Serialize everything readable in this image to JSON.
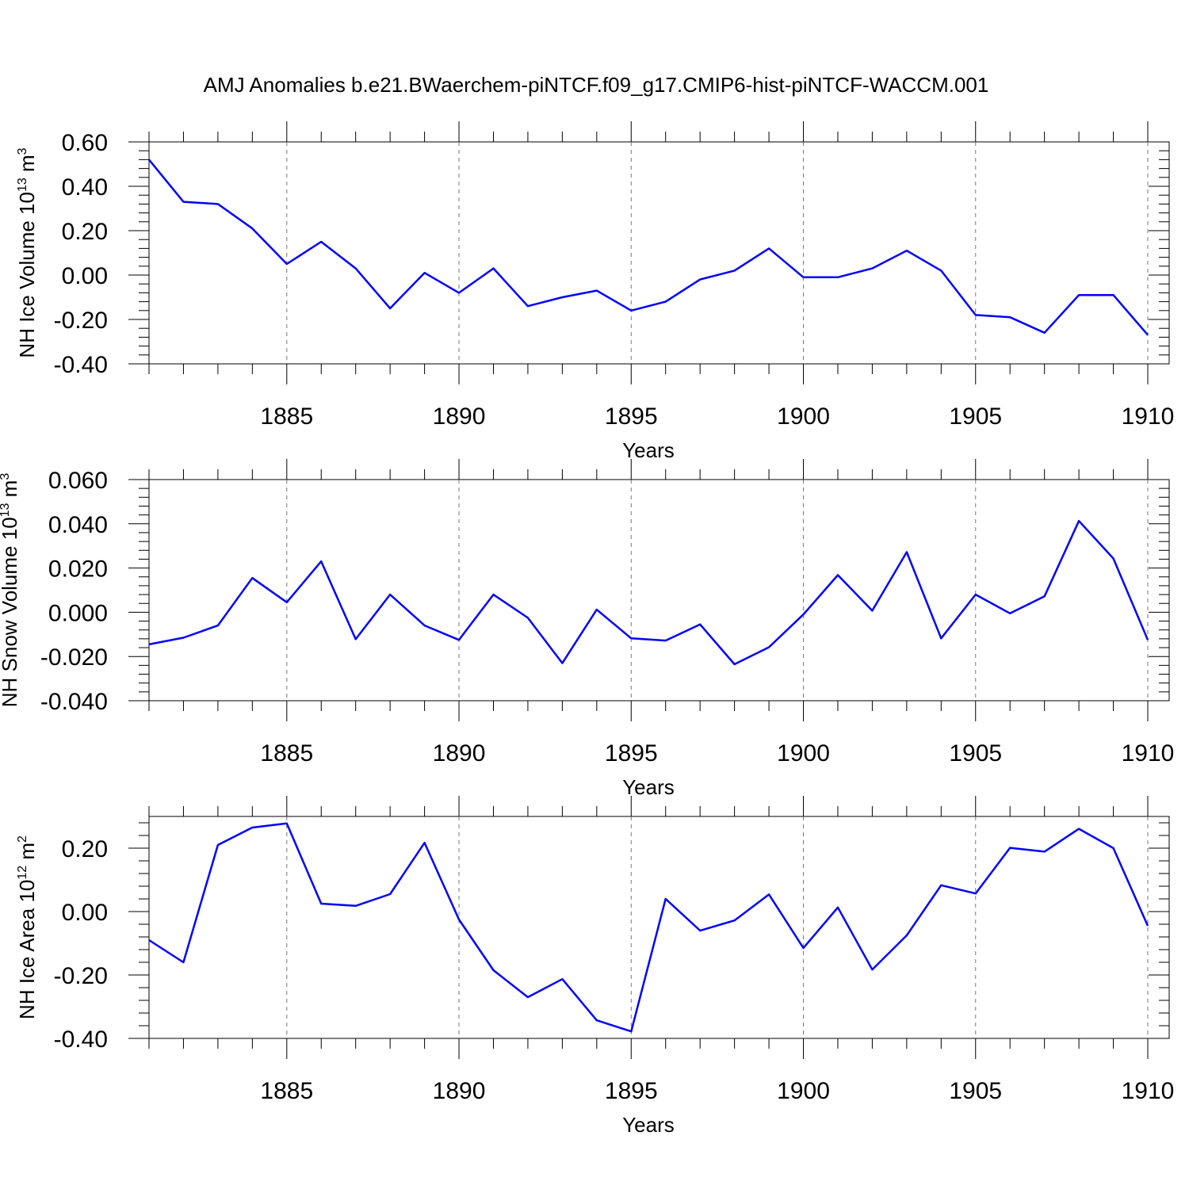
{
  "title": "AMJ Anomalies b.e21.BWaerchem-piNTCF.f09_g17.CMIP6-hist-piNTCF-WACCM.001",
  "colors": {
    "line": "#0000ff",
    "grid": "#777777",
    "frame": "#000000"
  },
  "chart_data": [
    {
      "type": "line",
      "ylabel": "NH Ice Volume 10",
      "ylabel_sup": "13",
      "ylabel_unit": " m",
      "ylabel_unit_sup": "3",
      "xlabel": "Years",
      "xlim": [
        1881,
        1910
      ],
      "ylim": [
        -0.4,
        0.6
      ],
      "yticks": [
        -0.4,
        -0.2,
        0.0,
        0.2,
        0.4,
        0.6
      ],
      "ytick_labels": [
        "-0.40",
        "-0.20",
        "0.00",
        "0.20",
        "0.40",
        "0.60"
      ],
      "xticks": [
        1885,
        1890,
        1895,
        1900,
        1905,
        1910
      ],
      "xtick_labels": [
        "1885",
        "1890",
        "1895",
        "1900",
        "1905",
        "1910"
      ],
      "grid": "vertical dashed at major x ticks",
      "x": [
        1881,
        1882,
        1883,
        1884,
        1885,
        1886,
        1887,
        1888,
        1889,
        1890,
        1891,
        1892,
        1893,
        1894,
        1895,
        1896,
        1897,
        1898,
        1899,
        1900,
        1901,
        1902,
        1903,
        1904,
        1905,
        1906,
        1907,
        1908,
        1909,
        1910
      ],
      "values": [
        0.52,
        0.33,
        0.32,
        0.21,
        0.05,
        0.15,
        0.03,
        -0.15,
        0.01,
        -0.08,
        0.03,
        -0.14,
        -0.1,
        -0.07,
        -0.16,
        -0.12,
        -0.02,
        0.02,
        0.12,
        -0.01,
        -0.01,
        0.03,
        0.11,
        0.02,
        -0.18,
        -0.19,
        -0.26,
        -0.09,
        -0.09,
        -0.27
      ]
    },
    {
      "type": "line",
      "ylabel": "NH Snow Volume 10",
      "ylabel_sup": "13",
      "ylabel_unit": " m",
      "ylabel_unit_sup": "3",
      "xlabel": "Years",
      "xlim": [
        1881,
        1910
      ],
      "ylim": [
        -0.04,
        0.06
      ],
      "yticks": [
        -0.04,
        -0.02,
        0.0,
        0.02,
        0.04,
        0.06
      ],
      "ytick_labels": [
        "-0.040",
        "-0.020",
        "0.000",
        "0.020",
        "0.040",
        "0.060"
      ],
      "xticks": [
        1885,
        1890,
        1895,
        1900,
        1905,
        1910
      ],
      "xtick_labels": [
        "1885",
        "1890",
        "1895",
        "1900",
        "1905",
        "1910"
      ],
      "grid": "vertical dashed at major x ticks",
      "x": [
        1881,
        1882,
        1883,
        1884,
        1885,
        1886,
        1887,
        1888,
        1889,
        1890,
        1891,
        1892,
        1893,
        1894,
        1895,
        1896,
        1897,
        1898,
        1899,
        1900,
        1901,
        1902,
        1903,
        1904,
        1905,
        1906,
        1907,
        1908,
        1909,
        1910
      ],
      "values": [
        -0.0145,
        -0.0115,
        -0.006,
        0.0155,
        0.0045,
        0.023,
        -0.0122,
        0.008,
        -0.006,
        -0.0125,
        0.008,
        -0.0025,
        -0.023,
        0.0012,
        -0.0118,
        -0.0128,
        -0.0055,
        -0.0235,
        -0.0158,
        -0.001,
        0.0168,
        0.0007,
        0.0272,
        -0.0118,
        0.008,
        -0.0005,
        0.0072,
        0.0413,
        0.0243,
        -0.0125
      ]
    },
    {
      "type": "line",
      "ylabel": "NH Ice Area 10",
      "ylabel_sup": "12",
      "ylabel_unit": " m",
      "ylabel_unit_sup": "2",
      "xlabel": "Years",
      "xlim": [
        1881,
        1910
      ],
      "ylim": [
        -0.4,
        0.3
      ],
      "yticks": [
        -0.4,
        -0.2,
        0.0,
        0.2
      ],
      "ytick_labels": [
        "-0.40",
        "-0.20",
        "0.00",
        "0.20"
      ],
      "xticks": [
        1885,
        1890,
        1895,
        1900,
        1905,
        1910
      ],
      "xtick_labels": [
        "1885",
        "1890",
        "1895",
        "1900",
        "1905",
        "1910"
      ],
      "grid": "vertical dashed at major x ticks",
      "x": [
        1881,
        1882,
        1883,
        1884,
        1885,
        1886,
        1887,
        1888,
        1889,
        1890,
        1891,
        1892,
        1893,
        1894,
        1895,
        1896,
        1897,
        1898,
        1899,
        1900,
        1901,
        1902,
        1903,
        1904,
        1905,
        1906,
        1907,
        1908,
        1909,
        1910
      ],
      "values": [
        -0.09,
        -0.16,
        0.21,
        0.265,
        0.278,
        0.025,
        0.018,
        0.055,
        0.217,
        -0.025,
        -0.185,
        -0.27,
        -0.213,
        -0.343,
        -0.378,
        0.04,
        -0.06,
        -0.028,
        0.054,
        -0.115,
        0.013,
        -0.183,
        -0.075,
        0.083,
        0.057,
        0.201,
        0.189,
        0.261,
        0.2,
        -0.045
      ]
    }
  ]
}
